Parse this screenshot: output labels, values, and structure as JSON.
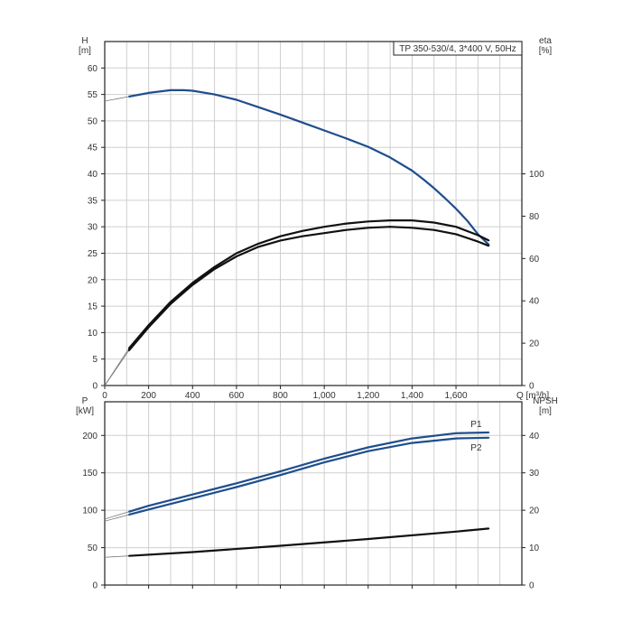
{
  "chart_data": [
    {
      "type": "line",
      "title": "TP 350-530/4, 3*400 V, 50Hz",
      "xlabel": "Q [m³/h]",
      "ylabel": "H\n[m]",
      "ylabel_right": "eta\n[%]",
      "xlim": [
        0,
        1900
      ],
      "ylim": [
        0,
        65
      ],
      "ylim_right": [
        0,
        162.5
      ],
      "grid": true,
      "x_ticks": [
        "0",
        "200",
        "400",
        "600",
        "800",
        "1,000",
        "1,200",
        "1,400",
        "1,600"
      ],
      "y_ticks": [
        "0",
        "5",
        "10",
        "15",
        "20",
        "25",
        "30",
        "35",
        "40",
        "45",
        "50",
        "55",
        "60"
      ],
      "y_ticks_right": [
        "0",
        "20",
        "40",
        "60",
        "80",
        "100"
      ],
      "series": [
        {
          "axis": "left",
          "color": "#1f4e8c",
          "x": [
            110,
            200,
            300,
            360,
            400,
            500,
            600,
            700,
            800,
            900,
            1000,
            1100,
            1200,
            1300,
            1400,
            1450,
            1500,
            1550,
            1600,
            1650,
            1700,
            1750
          ],
          "y": [
            54.6,
            55.3,
            55.8,
            55.8,
            55.7,
            55.0,
            54.0,
            52.6,
            51.2,
            49.7,
            48.2,
            46.7,
            45.1,
            43.1,
            40.6,
            39.0,
            37.3,
            35.4,
            33.4,
            31.2,
            28.6,
            26.6
          ]
        },
        {
          "axis": "right",
          "color": "#111111",
          "x": [
            110,
            200,
            300,
            400,
            500,
            600,
            700,
            800,
            900,
            1000,
            1100,
            1200,
            1300,
            1400,
            1500,
            1600,
            1700,
            1750
          ],
          "y": [
            17.5,
            28.5,
            39.5,
            48.5,
            56.0,
            62.5,
            67.0,
            70.5,
            73.0,
            75.0,
            76.5,
            77.5,
            78.0,
            78.0,
            77.0,
            75.0,
            71.0,
            68.5
          ]
        },
        {
          "axis": "right",
          "color": "#111111",
          "x": [
            110,
            200,
            300,
            400,
            500,
            600,
            700,
            800,
            900,
            1000,
            1100,
            1200,
            1300,
            1400,
            1500,
            1600,
            1700,
            1750
          ],
          "y": [
            16.5,
            27.5,
            38.5,
            47.5,
            55.0,
            61.0,
            65.5,
            68.5,
            70.5,
            72.0,
            73.5,
            74.5,
            75.0,
            74.5,
            73.5,
            71.5,
            68.0,
            66.0
          ]
        }
      ]
    },
    {
      "type": "line",
      "xlabel": "",
      "ylabel": "P\n[kW]",
      "ylabel_right": "NPSH\n[m]",
      "xlim": [
        0,
        1900
      ],
      "ylim": [
        0,
        245
      ],
      "ylim_right": [
        0,
        49
      ],
      "grid": true,
      "y_ticks": [
        "0",
        "50",
        "100",
        "150",
        "200"
      ],
      "y_ticks_right": [
        "0",
        "10",
        "20",
        "30",
        "40"
      ],
      "series": [
        {
          "name": "P1",
          "axis": "left",
          "color": "#1f4e8c",
          "x": [
            110,
            200,
            400,
            600,
            800,
            1000,
            1200,
            1400,
            1600,
            1750
          ],
          "y": [
            98,
            106,
            121,
            136,
            152,
            169,
            184,
            196,
            203,
            204
          ]
        },
        {
          "name": "P2",
          "axis": "left",
          "color": "#1f4e8c",
          "x": [
            110,
            200,
            400,
            600,
            800,
            1000,
            1200,
            1400,
            1600,
            1750
          ],
          "y": [
            94,
            101,
            116,
            131,
            147,
            164,
            179,
            190,
            196,
            197
          ]
        },
        {
          "axis": "right",
          "color": "#111111",
          "x": [
            110,
            400,
            800,
            1200,
            1600,
            1750
          ],
          "y": [
            7.8,
            8.8,
            10.5,
            12.3,
            14.3,
            15.1
          ]
        }
      ]
    }
  ]
}
